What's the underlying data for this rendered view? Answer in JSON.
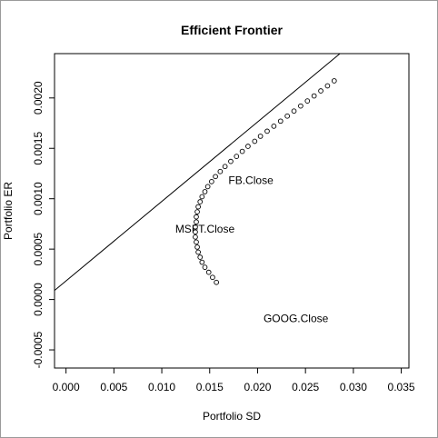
{
  "chart_data": {
    "type": "scatter",
    "title": "Efficient Frontier",
    "xlabel": "Portfolio SD",
    "ylabel": "Portfolio ER",
    "xlim": [
      -0.0012,
      0.0358
    ],
    "ylim": [
      -0.00068,
      0.00244
    ],
    "x_ticks": [
      0.0,
      0.005,
      0.01,
      0.015,
      0.02,
      0.025,
      0.03,
      0.035
    ],
    "x_tick_labels": [
      "0.000",
      "0.005",
      "0.010",
      "0.015",
      "0.020",
      "0.025",
      "0.030",
      "0.035"
    ],
    "y_ticks": [
      -0.0005,
      0.0,
      0.0005,
      0.001,
      0.0015,
      0.002
    ],
    "y_tick_labels": [
      "-0.0005",
      "0.0000",
      "0.0005",
      "0.0010",
      "0.0015",
      "0.0020"
    ],
    "grid": false,
    "series": [
      {
        "marker": "open-circle",
        "points": [
          [
            0.0157,
            0.00017
          ],
          [
            0.0153,
            0.00022
          ],
          [
            0.0149,
            0.00027
          ],
          [
            0.0145,
            0.00032
          ],
          [
            0.0142,
            0.00037
          ],
          [
            0.014,
            0.00042
          ],
          [
            0.0138,
            0.00047
          ],
          [
            0.0137,
            0.00052
          ],
          [
            0.0136,
            0.00057
          ],
          [
            0.0135,
            0.00062
          ],
          [
            0.0135,
            0.00067
          ],
          [
            0.0135,
            0.00072
          ],
          [
            0.0136,
            0.00077
          ],
          [
            0.0136,
            0.00082
          ],
          [
            0.0137,
            0.00087
          ],
          [
            0.0138,
            0.00092
          ],
          [
            0.014,
            0.00097
          ],
          [
            0.0142,
            0.00102
          ],
          [
            0.0145,
            0.00107
          ],
          [
            0.0148,
            0.00112
          ],
          [
            0.0152,
            0.00117
          ],
          [
            0.0156,
            0.00122
          ],
          [
            0.0161,
            0.00127
          ],
          [
            0.0166,
            0.00132
          ],
          [
            0.0172,
            0.00137
          ],
          [
            0.0178,
            0.00142
          ],
          [
            0.0184,
            0.00147
          ],
          [
            0.019,
            0.00152
          ],
          [
            0.0197,
            0.00157
          ],
          [
            0.0203,
            0.00162
          ],
          [
            0.021,
            0.00167
          ],
          [
            0.0217,
            0.00172
          ],
          [
            0.0224,
            0.00177
          ],
          [
            0.0231,
            0.00182
          ],
          [
            0.0238,
            0.00187
          ],
          [
            0.0245,
            0.00192
          ],
          [
            0.0252,
            0.00197
          ],
          [
            0.0259,
            0.00202
          ],
          [
            0.0266,
            0.00207
          ],
          [
            0.0273,
            0.00212
          ],
          [
            0.028,
            0.00217
          ]
        ]
      }
    ],
    "line": {
      "x1": -0.0012,
      "y1": 9e-05,
      "x2": 0.0286,
      "y2": 0.00244
    },
    "annotations": [
      {
        "text": "FB.Close",
        "x": 0.0193,
        "y": 0.00118
      },
      {
        "text": "MSFT.Close",
        "x": 0.0145,
        "y": 0.0007
      },
      {
        "text": "GOOG.Close",
        "x": 0.024,
        "y": -0.00019
      }
    ]
  }
}
